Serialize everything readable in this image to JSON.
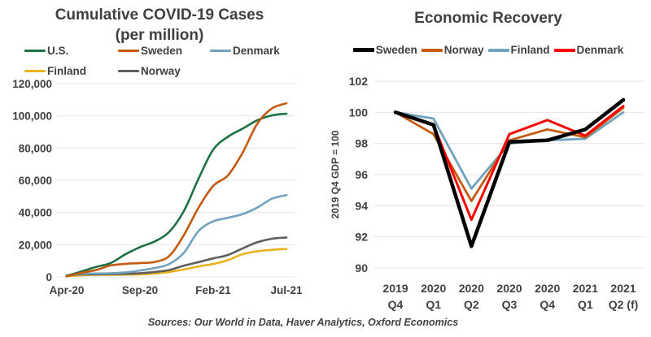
{
  "page": {
    "background": "#FFFFFF",
    "text_color": "#404040",
    "grid_color": "#E4E4E4"
  },
  "footer": {
    "sources": "Sources: Our World in Data, Haver Analytics, Oxford Economics"
  },
  "chart_data": [
    {
      "id": "covid",
      "type": "line",
      "title": "Cumulative COVID-19 Cases",
      "subtitle": "(per million)",
      "x": [
        "Apr-20",
        "May-20",
        "Jun-20",
        "Jul-20",
        "Aug-20",
        "Sep-20",
        "Oct-20",
        "Nov-20",
        "Dec-20",
        "Jan-21",
        "Feb-21",
        "Mar-21",
        "Apr-21",
        "May-21",
        "Jun-21",
        "Jul-21"
      ],
      "xticks": [
        {
          "index": 0,
          "label": "Apr-20"
        },
        {
          "index": 5,
          "label": "Sep-20"
        },
        {
          "index": 10,
          "label": "Feb-21"
        },
        {
          "index": 15,
          "label": "Jul-21"
        }
      ],
      "ylim": [
        0,
        120000
      ],
      "yticks": [
        {
          "value": 0,
          "label": "0"
        },
        {
          "value": 20000,
          "label": "20,000"
        },
        {
          "value": 40000,
          "label": "40,000"
        },
        {
          "value": 60000,
          "label": "60,000"
        },
        {
          "value": 80000,
          "label": "80,000"
        },
        {
          "value": 100000,
          "label": "100,000"
        },
        {
          "value": 120000,
          "label": "120,000"
        }
      ],
      "grid": true,
      "smooth": true,
      "legend_position": "top",
      "series": [
        {
          "name": "U.S.",
          "color": "#1E7145",
          "width": 2.6,
          "values": [
            600,
            3400,
            6200,
            8600,
            14000,
            18500,
            22000,
            28000,
            41000,
            61000,
            79000,
            87000,
            92000,
            97200,
            100300,
            101400
          ]
        },
        {
          "name": "Sweden",
          "color": "#C55A11",
          "width": 2.6,
          "values": [
            400,
            2500,
            4300,
            7100,
            8100,
            8600,
            9300,
            13000,
            26000,
            43000,
            56500,
            63000,
            77000,
            95000,
            104500,
            107800
          ]
        },
        {
          "name": "Denmark",
          "color": "#72A3BE",
          "width": 2.6,
          "values": [
            500,
            1900,
            2100,
            2300,
            2800,
            4000,
            5500,
            8000,
            15000,
            28500,
            34500,
            36700,
            39000,
            43000,
            48500,
            50800
          ]
        },
        {
          "name": "Finland",
          "color": "#E9B21C",
          "width": 2.6,
          "values": [
            300,
            1050,
            1250,
            1320,
            1400,
            1600,
            2100,
            3100,
            4600,
            6500,
            8000,
            10400,
            14100,
            15900,
            16800,
            17400
          ]
        },
        {
          "name": "Norway",
          "color": "#5E5E5E",
          "width": 2.6,
          "values": [
            900,
            1500,
            1600,
            1700,
            1900,
            2300,
            3100,
            4300,
            7000,
            9200,
            11500,
            13600,
            17700,
            21500,
            23700,
            24500
          ]
        }
      ],
      "draw_order": [
        3,
        4,
        2,
        0,
        1
      ]
    },
    {
      "id": "economy",
      "type": "line",
      "title": "Economic Recovery",
      "ylabel": "2019 Q4 GDP = 100",
      "x": [
        [
          "2019",
          "Q4"
        ],
        [
          "2020",
          "Q1"
        ],
        [
          "2020",
          "Q2"
        ],
        [
          "2020",
          "Q3"
        ],
        [
          "2020",
          "Q4"
        ],
        [
          "2021",
          "Q1"
        ],
        [
          "2021",
          "Q2 (f)"
        ]
      ],
      "ylim": [
        90,
        102
      ],
      "yticks": [
        {
          "value": 90,
          "label": "90"
        },
        {
          "value": 92,
          "label": "92"
        },
        {
          "value": 94,
          "label": "94"
        },
        {
          "value": 96,
          "label": "96"
        },
        {
          "value": 98,
          "label": "98"
        },
        {
          "value": 100,
          "label": "100"
        },
        {
          "value": 102,
          "label": "102"
        }
      ],
      "grid": true,
      "smooth": false,
      "legend_position": "top",
      "series": [
        {
          "name": "Sweden",
          "color": "#000000",
          "width": 4.5,
          "values": [
            100,
            99.2,
            91.4,
            98.1,
            98.2,
            98.9,
            100.8
          ]
        },
        {
          "name": "Norway",
          "color": "#C55A11",
          "width": 2.8,
          "values": [
            100,
            98.6,
            94.3,
            98.2,
            98.9,
            98.4,
            100.3
          ]
        },
        {
          "name": "Finland",
          "color": "#72A3BE",
          "width": 2.8,
          "values": [
            100,
            99.6,
            95.1,
            98.0,
            98.2,
            98.3,
            100.0
          ]
        },
        {
          "name": "Denmark",
          "color": "#FF0000",
          "width": 3.0,
          "values": [
            100,
            99.2,
            93.1,
            98.6,
            99.5,
            98.5,
            100.4
          ]
        }
      ],
      "draw_order": [
        2,
        1,
        3,
        0
      ]
    }
  ]
}
